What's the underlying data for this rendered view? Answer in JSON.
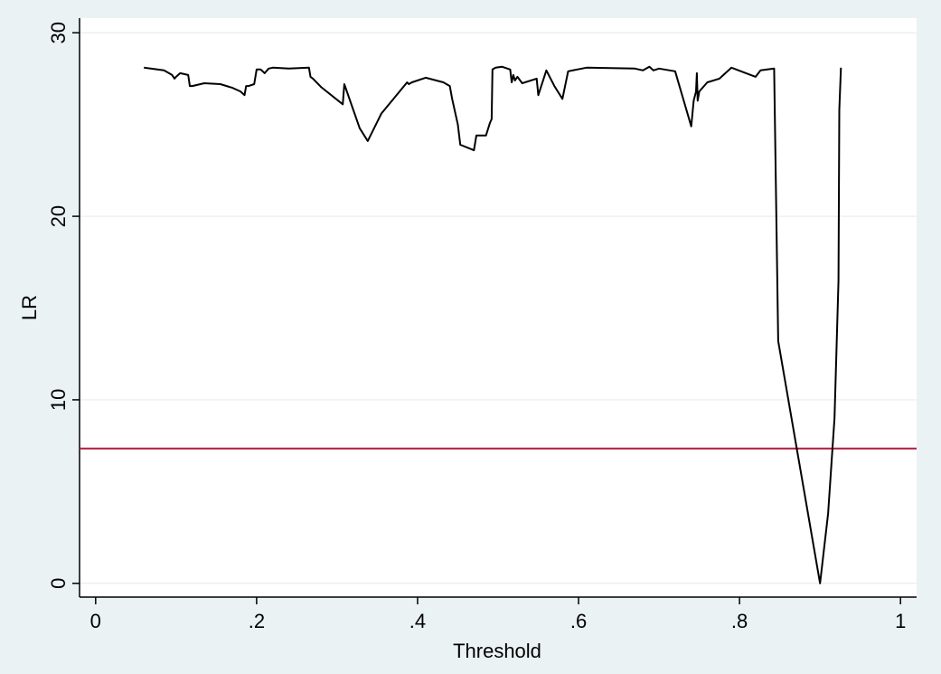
{
  "chart_data": {
    "type": "line",
    "title": "",
    "xlabel": "Threshold",
    "ylabel": "LR",
    "xlim": [
      -0.02,
      1.02
    ],
    "ylim": [
      -0.75,
      30.8
    ],
    "x_ticks": [
      0,
      0.2,
      0.4,
      0.6,
      0.8,
      1
    ],
    "x_tick_labels": [
      "0",
      ".2",
      ".4",
      ".6",
      ".8",
      "1"
    ],
    "y_ticks": [
      0,
      10,
      20,
      30
    ],
    "y_tick_labels": [
      "0",
      "10",
      "20",
      "30"
    ],
    "grid": "horizontal",
    "legend": "none",
    "colors": {
      "background": "#eaf2f3",
      "plot_area": "#ffffff",
      "series": "#000000",
      "reference_line": "#b01c3c",
      "grid": "#e8eef0"
    },
    "reference_line": {
      "y": 7.35
    },
    "series": [
      {
        "x": [
          0.06,
          0.085,
          0.095,
          0.098,
          0.1,
          0.105,
          0.11,
          0.115,
          0.117,
          0.12,
          0.135,
          0.155,
          0.17,
          0.18,
          0.185,
          0.187,
          0.19,
          0.197,
          0.2,
          0.205,
          0.21,
          0.215,
          0.22,
          0.24,
          0.265,
          0.267,
          0.27,
          0.28,
          0.307,
          0.309,
          0.328,
          0.338,
          0.355,
          0.387,
          0.389,
          0.393,
          0.41,
          0.432,
          0.44,
          0.443,
          0.45,
          0.453,
          0.47,
          0.473,
          0.477,
          0.485,
          0.49,
          0.492,
          0.493,
          0.497,
          0.505,
          0.515,
          0.517,
          0.519,
          0.521,
          0.524,
          0.53,
          0.548,
          0.55,
          0.56,
          0.57,
          0.58,
          0.587,
          0.61,
          0.67,
          0.68,
          0.688,
          0.693,
          0.7,
          0.72,
          0.74,
          0.743,
          0.746,
          0.747,
          0.748,
          0.75,
          0.76,
          0.775,
          0.79,
          0.82,
          0.826,
          0.843,
          0.848,
          0.9,
          0.91,
          0.918,
          0.923,
          0.924,
          0.926
        ],
        "y": [
          28.1,
          27.95,
          27.7,
          27.5,
          27.6,
          27.8,
          27.75,
          27.7,
          27.1,
          27.1,
          27.25,
          27.2,
          27.0,
          26.8,
          26.6,
          27.1,
          27.1,
          27.2,
          28.0,
          28.0,
          27.8,
          28.05,
          28.1,
          28.05,
          28.1,
          27.6,
          27.5,
          27.05,
          26.1,
          27.2,
          24.8,
          24.1,
          25.6,
          27.3,
          27.2,
          27.3,
          27.55,
          27.3,
          27.1,
          26.4,
          25.0,
          23.9,
          23.6,
          24.4,
          24.4,
          24.4,
          25.1,
          25.3,
          28.0,
          28.1,
          28.15,
          28.0,
          27.3,
          27.7,
          27.4,
          27.6,
          27.25,
          27.5,
          26.6,
          27.95,
          27.1,
          26.4,
          27.9,
          28.1,
          28.05,
          27.95,
          28.15,
          27.95,
          28.05,
          27.9,
          24.9,
          26.3,
          26.8,
          27.8,
          26.3,
          26.8,
          27.3,
          27.5,
          28.1,
          27.6,
          27.95,
          28.05,
          13.2,
          0.0,
          3.8,
          9.0,
          16.5,
          25.8,
          28.1
        ]
      }
    ]
  }
}
